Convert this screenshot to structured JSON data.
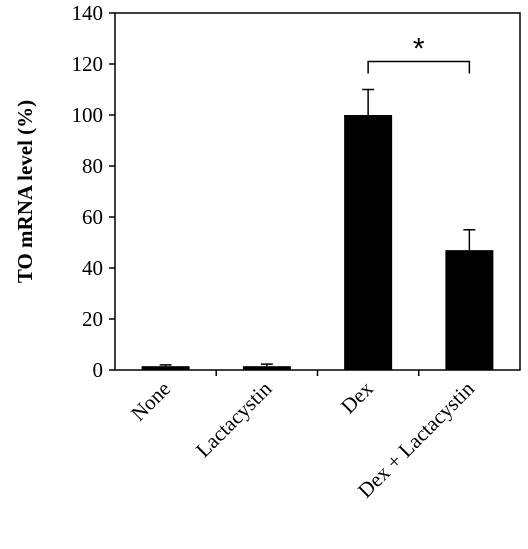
{
  "chart_data": {
    "type": "bar",
    "categories": [
      "None",
      "Lactacystin",
      "Dex",
      "Dex + Lactacystin"
    ],
    "values": [
      1.5,
      1.5,
      100,
      47
    ],
    "errors": [
      0.5,
      0.8,
      10,
      8
    ],
    "ylabel": "TO mRNA level (%)",
    "ylim": [
      0,
      140
    ],
    "yticks": [
      0,
      20,
      40,
      60,
      80,
      100,
      120,
      140
    ],
    "grid": false,
    "legend": "none",
    "bar_color": "#000000",
    "significance": {
      "from": "Dex",
      "to": "Dex + Lactacystin",
      "label": "*"
    }
  }
}
